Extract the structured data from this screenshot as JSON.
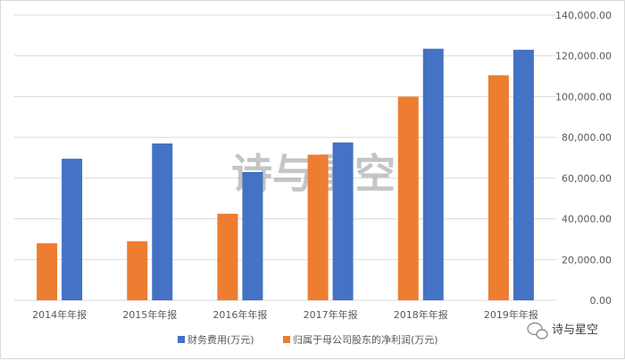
{
  "colors": {
    "series_blue": "#4472c4",
    "series_orange": "#ed7d31",
    "grid": "#d9d9d9",
    "text": "#595959"
  },
  "watermark": "诗与星空",
  "brand": {
    "name": "诗与星空",
    "icon": "wechat-icon"
  },
  "chart_data": {
    "type": "bar",
    "categories": [
      "2014年年报",
      "2015年年报",
      "2016年年报",
      "2017年年报",
      "2018年年报",
      "2019年年报"
    ],
    "series": [
      {
        "name": "归属于母公司股东的净利润(万元)",
        "color": "#ed7d31",
        "values": [
          28000,
          29000,
          42500,
          71500,
          100000,
          110500
        ]
      },
      {
        "name": "财务费用(万元)",
        "color": "#4472c4",
        "values": [
          69500,
          77000,
          63000,
          77500,
          123500,
          123000
        ]
      }
    ],
    "legend_order": [
      "财务费用(万元)",
      "归属于母公司股东的净利润(万元)"
    ],
    "y_ticks": [
      "0.00",
      "20,000.00",
      "40,000.00",
      "60,000.00",
      "80,000.00",
      "100,000.00",
      "120,000.00",
      "140,000.00"
    ],
    "ylim": [
      0,
      140000
    ],
    "y_axis_position": "right",
    "legend_position": "bottom",
    "grid": true
  }
}
